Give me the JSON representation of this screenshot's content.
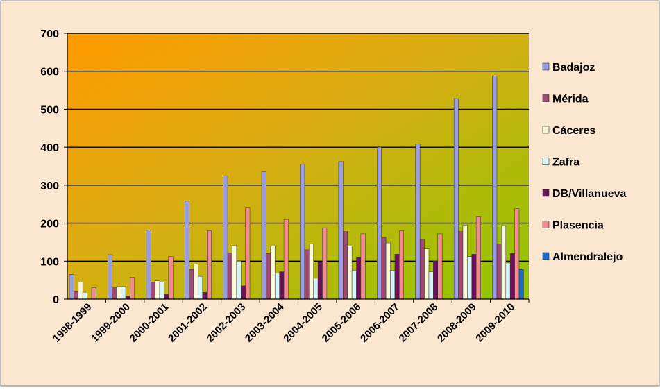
{
  "chart_data": {
    "type": "bar",
    "title": "",
    "xlabel": "",
    "ylabel": "",
    "ylim": [
      0,
      700
    ],
    "yticks": [
      "0",
      "100",
      "200",
      "300",
      "400",
      "500",
      "600",
      "700"
    ],
    "grid": true,
    "legend_position": "right",
    "categories": [
      "1998-1999",
      "1999-2000",
      "2000-2001",
      "2001-2002",
      "2002-2003",
      "2003-2004",
      "2004-2005",
      "2005-2006",
      "2006-2007",
      "2007-2008",
      "2008-2009",
      "2009-2010"
    ],
    "series": [
      {
        "name": "Badajoz",
        "color": "#9a9ee0",
        "values": [
          65,
          117,
          182,
          258,
          325,
          335,
          355,
          362,
          400,
          408,
          528,
          588
        ]
      },
      {
        "name": "Mérida",
        "color": "#a04a72",
        "values": [
          20,
          30,
          45,
          78,
          122,
          120,
          130,
          178,
          163,
          158,
          178,
          145
        ]
      },
      {
        "name": "Cáceres",
        "color": "#f8f8d8",
        "values": [
          45,
          33,
          48,
          92,
          142,
          140,
          145,
          140,
          148,
          132,
          195,
          193
        ]
      },
      {
        "name": "Zafra",
        "color": "#d8f4f8",
        "values": [
          18,
          33,
          45,
          60,
          100,
          68,
          55,
          75,
          75,
          72,
          112,
          95
        ]
      },
      {
        "name": "DB/Villanueva",
        "color": "#6a1258",
        "values": [
          0,
          8,
          12,
          18,
          35,
          72,
          98,
          110,
          118,
          100,
          118,
          120
        ]
      },
      {
        "name": "Plasencia",
        "color": "#f08c90",
        "values": [
          30,
          58,
          112,
          180,
          240,
          210,
          188,
          172,
          180,
          172,
          218,
          238
        ]
      },
      {
        "name": "Almendralejo",
        "color": "#1a6cc8",
        "values": [
          0,
          0,
          0,
          0,
          0,
          0,
          0,
          0,
          0,
          0,
          0,
          78
        ]
      }
    ]
  }
}
